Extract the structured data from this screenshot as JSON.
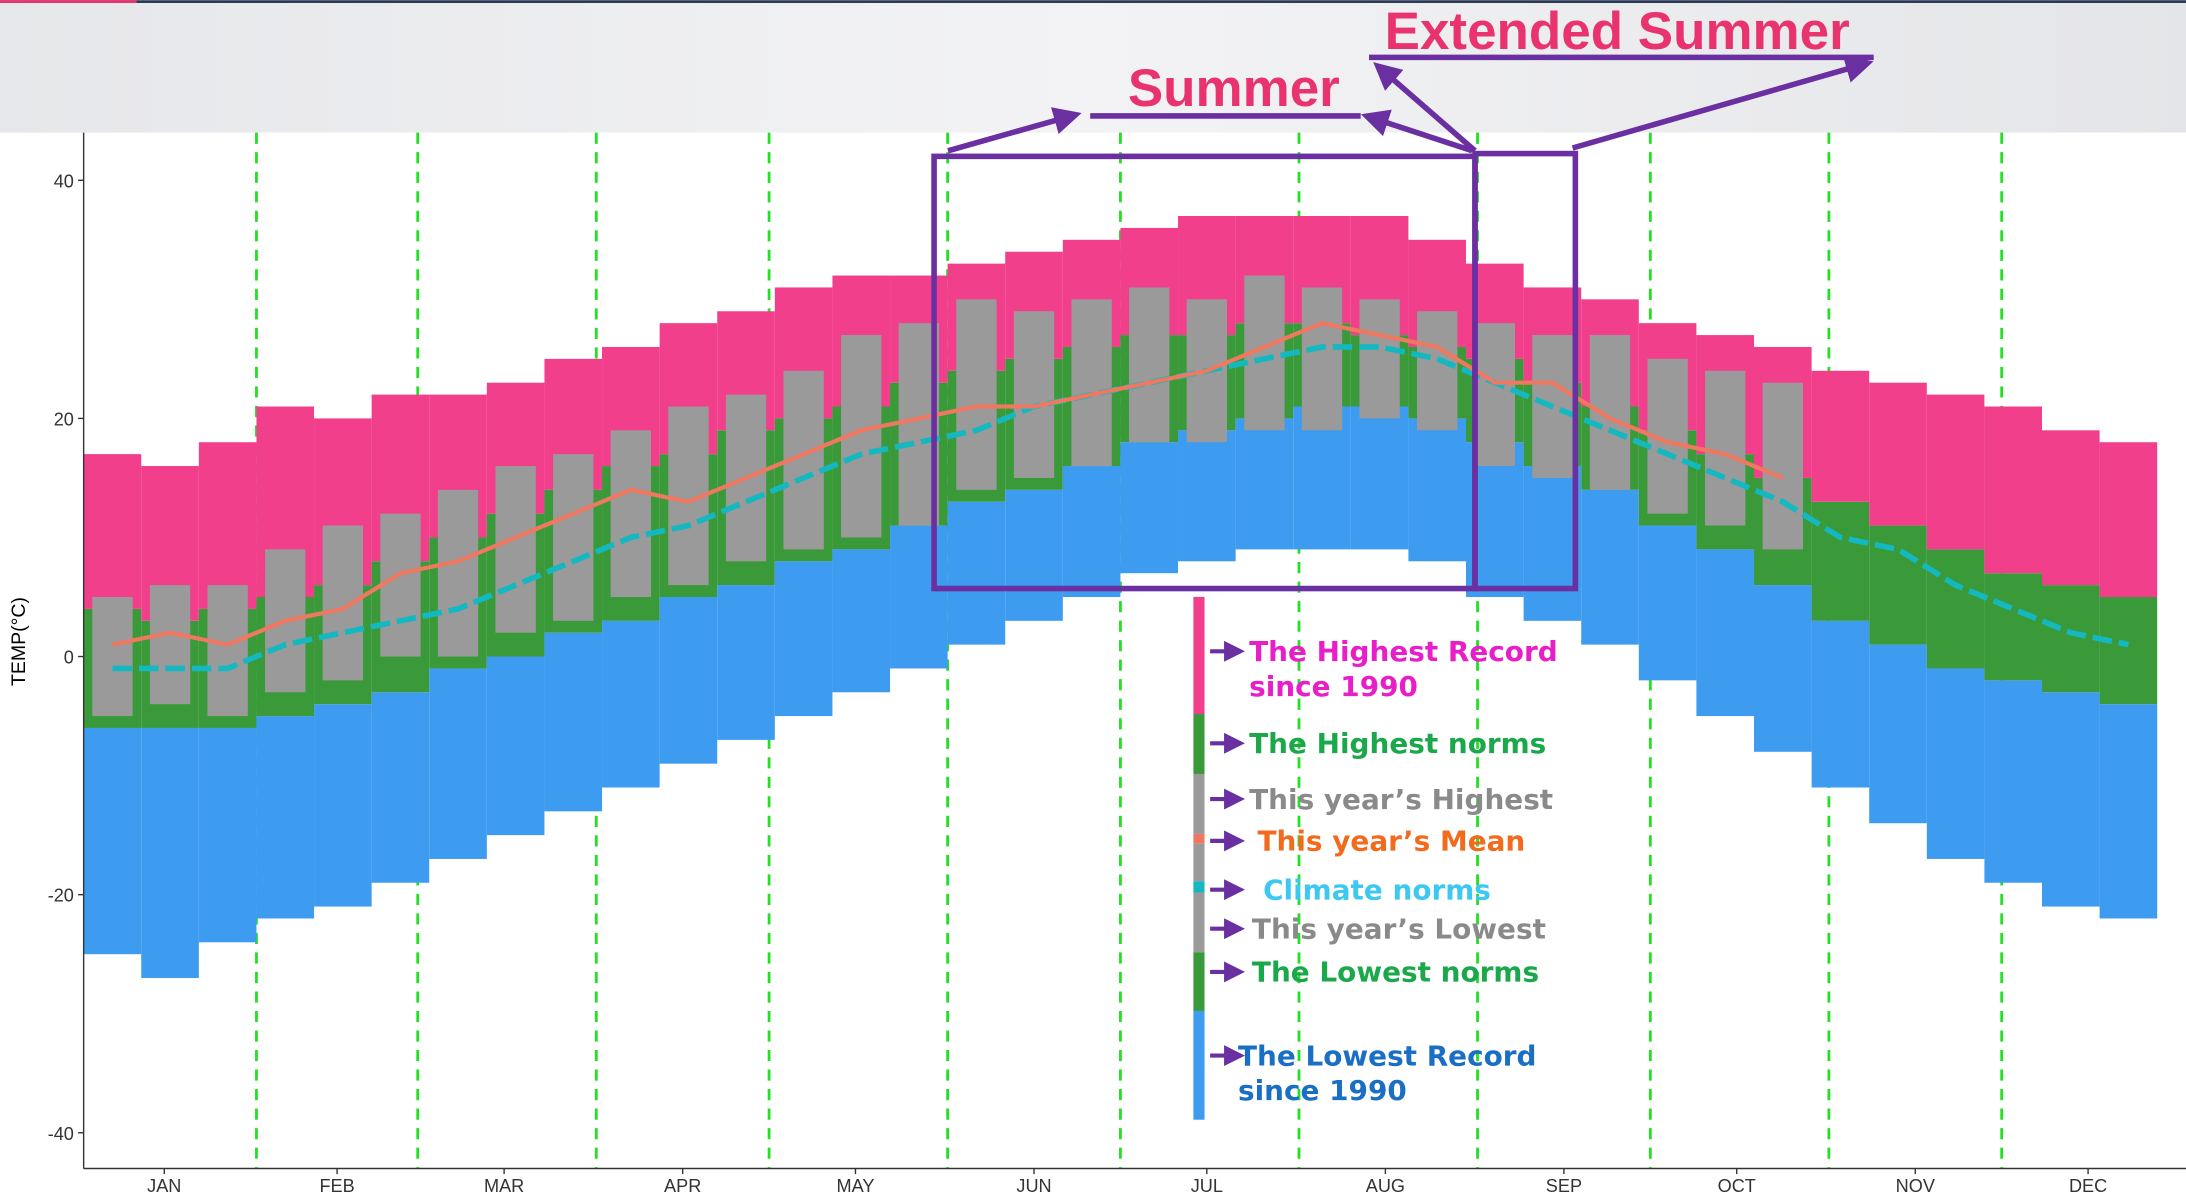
{
  "chart_data": {
    "type": "range-band",
    "annotations": {
      "summer": "Summer",
      "extended_summer": "Extended Summer"
    },
    "ylabel": "TEMP(°C)",
    "xlim": [
      0,
      365
    ],
    "ylim": [
      -43,
      44
    ],
    "yticks": [
      -40,
      -20,
      0,
      20,
      40
    ],
    "xticks": [
      {
        "value": 14,
        "label": "JAN"
      },
      {
        "value": 44,
        "label": "FEB"
      },
      {
        "value": 73,
        "label": "MAR"
      },
      {
        "value": 104,
        "label": "APR"
      },
      {
        "value": 134,
        "label": "MAY"
      },
      {
        "value": 165,
        "label": "JUN"
      },
      {
        "value": 195,
        "label": "JUL"
      },
      {
        "value": 226,
        "label": "AUG"
      },
      {
        "value": 257,
        "label": "SEP"
      },
      {
        "value": 287,
        "label": "OCT"
      },
      {
        "value": 318,
        "label": "NOV"
      },
      {
        "value": 348,
        "label": "DEC"
      }
    ],
    "xgrid": [
      30,
      58,
      89,
      119,
      150,
      180,
      211,
      242,
      272,
      303,
      333
    ],
    "x": [
      5,
      15,
      25,
      35,
      45,
      55,
      65,
      75,
      85,
      95,
      105,
      115,
      125,
      135,
      145,
      155,
      165,
      175,
      185,
      195,
      205,
      215,
      225,
      235,
      245,
      255,
      265,
      275,
      285,
      295,
      305,
      315,
      325,
      335,
      345,
      355
    ],
    "series": [
      {
        "name": "The Highest Record since 1990",
        "color": "#f23f8c",
        "label_color": "#e81ec8",
        "values": [
          17,
          16,
          18,
          21,
          20,
          22,
          22,
          23,
          25,
          26,
          28,
          29,
          31,
          32,
          32,
          33,
          34,
          35,
          36,
          37,
          37,
          37,
          37,
          35,
          33,
          31,
          30,
          28,
          27,
          26,
          24,
          23,
          22,
          21,
          19,
          18
        ]
      },
      {
        "name": "The Highest norms",
        "color": "#3a9a3a",
        "label_color": "#1aa84a",
        "values": [
          4,
          3,
          4,
          5,
          6,
          8,
          10,
          12,
          14,
          16,
          17,
          19,
          20,
          21,
          23,
          24,
          25,
          26,
          27,
          27,
          28,
          28,
          27,
          26,
          25,
          23,
          21,
          19,
          17,
          15,
          13,
          11,
          9,
          7,
          6,
          5
        ]
      },
      {
        "name": "This year’s Highest",
        "color": "#9a9a9a",
        "label_color": "#8a8a8a",
        "values": [
          5,
          6,
          6,
          9,
          11,
          12,
          14,
          16,
          17,
          19,
          21,
          22,
          24,
          27,
          28,
          30,
          29,
          30,
          31,
          30,
          32,
          31,
          30,
          29,
          28,
          27,
          27,
          25,
          24,
          23,
          null,
          null,
          null,
          null,
          null,
          null
        ]
      },
      {
        "name": "This year’s Mean",
        "color": "#f07860",
        "label_color": "#f26b1d",
        "values": [
          1,
          2,
          1,
          3,
          4,
          7,
          8,
          10,
          12,
          14,
          13,
          15,
          17,
          19,
          20,
          21,
          21,
          22,
          23,
          24,
          26,
          28,
          27,
          26,
          23,
          23,
          20,
          18,
          17,
          15,
          null,
          null,
          null,
          null,
          null,
          null
        ]
      },
      {
        "name": "Climate norms",
        "color": "#14b8c0",
        "label_color": "#3cc8f0",
        "values": [
          -1,
          -1,
          -1,
          1,
          2,
          3,
          4,
          6,
          8,
          10,
          11,
          13,
          15,
          17,
          18,
          19,
          21,
          22,
          23,
          24,
          25,
          26,
          26,
          25,
          23,
          21,
          19,
          17,
          15,
          13,
          10,
          9,
          6,
          4,
          2,
          1
        ]
      },
      {
        "name": "This year’s Lowest",
        "color": "#9a9a9a",
        "label_color": "#8a8a8a",
        "values": [
          -5,
          -4,
          -5,
          -3,
          -2,
          0,
          0,
          2,
          3,
          5,
          6,
          8,
          9,
          10,
          11,
          14,
          15,
          16,
          18,
          18,
          19,
          19,
          20,
          19,
          16,
          15,
          14,
          12,
          11,
          9,
          null,
          null,
          null,
          null,
          null,
          null
        ]
      },
      {
        "name": "The Lowest norms",
        "color": "#3a9a3a",
        "label_color": "#1aa84a",
        "values": [
          -6,
          -6,
          -6,
          -5,
          -4,
          -3,
          -1,
          0,
          2,
          3,
          5,
          6,
          8,
          9,
          11,
          13,
          14,
          16,
          18,
          19,
          20,
          21,
          21,
          20,
          18,
          16,
          14,
          11,
          9,
          6,
          3,
          1,
          -1,
          -2,
          -3,
          -4
        ]
      },
      {
        "name": "The Lowest Record since 1990",
        "color": "#3d9bf0",
        "label_color": "#1a6fc4",
        "values": [
          -25,
          -27,
          -24,
          -22,
          -21,
          -19,
          -17,
          -15,
          -13,
          -11,
          -9,
          -7,
          -5,
          -3,
          -1,
          1,
          3,
          5,
          7,
          8,
          9,
          9,
          9,
          8,
          5,
          3,
          1,
          -2,
          -5,
          -8,
          -11,
          -14,
          -17,
          -19,
          -21,
          -22
        ]
      }
    ]
  }
}
